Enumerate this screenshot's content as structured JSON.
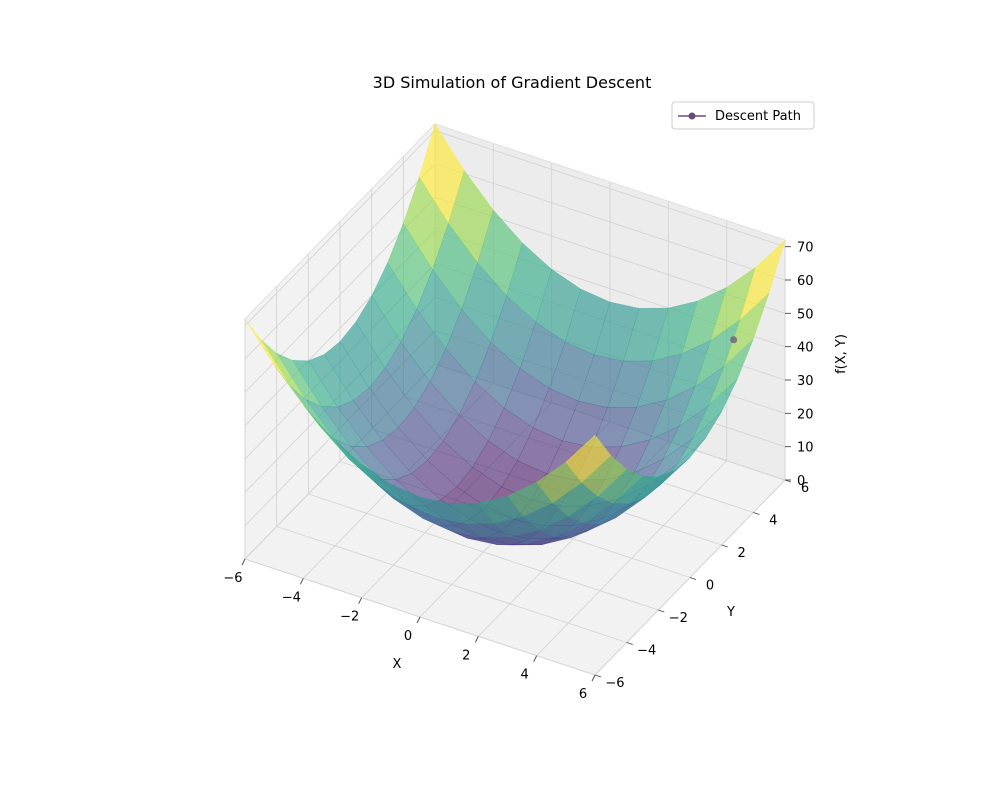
{
  "chart_data": {
    "type": "surface3d",
    "title": "3D Simulation of Gradient Descent",
    "xlabel": "X",
    "ylabel": "Y",
    "zlabel": "f(X, Y)",
    "function": "X^2 + Y^2",
    "xlim": [
      -6,
      6
    ],
    "ylim": [
      -6,
      6
    ],
    "zlim": [
      0,
      72
    ],
    "x_ticks": [
      -6,
      -4,
      -2,
      0,
      2,
      4,
      6
    ],
    "y_ticks": [
      -6,
      -4,
      -2,
      0,
      2,
      4,
      6
    ],
    "z_ticks": [
      0,
      10,
      20,
      30,
      40,
      50,
      60,
      70
    ],
    "x_tick_labels": [
      "−6",
      "−4",
      "−2",
      "0",
      "2",
      "4",
      "6"
    ],
    "y_tick_labels": [
      "−6",
      "−4",
      "−2",
      "0",
      "2",
      "4",
      "6"
    ],
    "z_tick_labels": [
      "0",
      "10",
      "20",
      "30",
      "40",
      "50",
      "60",
      "70"
    ],
    "colormap": "viridis",
    "surface_alpha": 0.6,
    "grid": true,
    "legend": {
      "position": "top-right",
      "entries": [
        "Descent Path"
      ]
    },
    "series": [
      {
        "name": "Descent Path",
        "color": "#6a4c7a",
        "marker": "o",
        "points": [
          {
            "x": 5,
            "y": 4.6,
            "z": 46
          }
        ]
      }
    ]
  }
}
